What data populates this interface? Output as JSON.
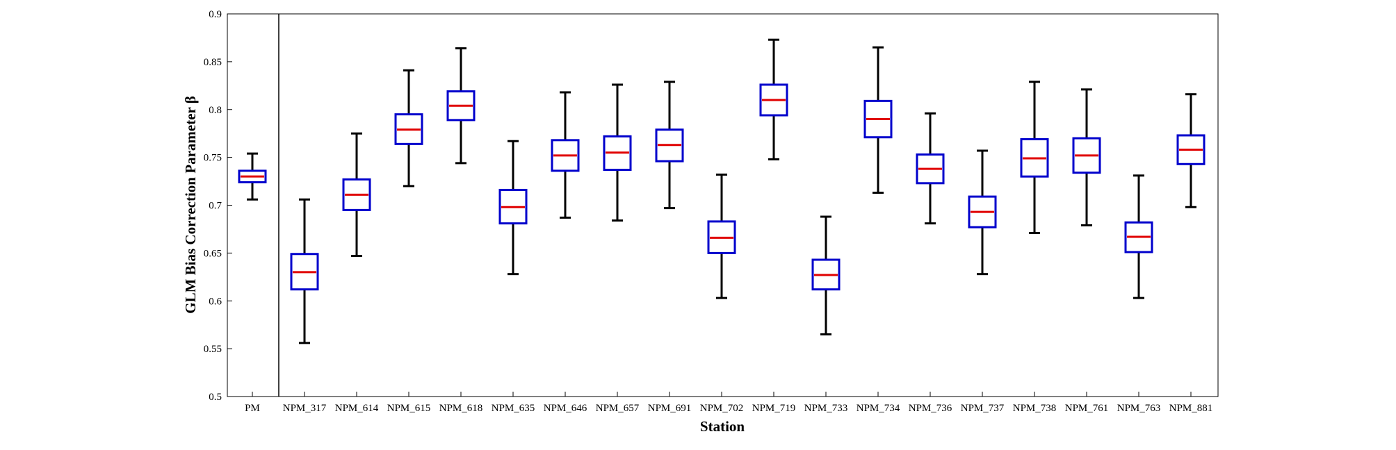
{
  "chart_data": {
    "type": "box",
    "xlabel": "Station",
    "ylabel": "GLM Bias Correction Parameter β",
    "ylim": [
      0.5,
      0.9
    ],
    "yticks": [
      0.5,
      0.55,
      0.6,
      0.65,
      0.7,
      0.75,
      0.8,
      0.85,
      0.9
    ],
    "grid": false,
    "colors": {
      "box": "#0000cc",
      "median": "#e00000",
      "whisker": "#000000"
    },
    "categories": [
      "PM",
      "NPM_317",
      "NPM_614",
      "NPM_615",
      "NPM_618",
      "NPM_635",
      "NPM_646",
      "NPM_657",
      "NPM_691",
      "NPM_702",
      "NPM_719",
      "NPM_733",
      "NPM_734",
      "NPM_736",
      "NPM_737",
      "NPM_738",
      "NPM_761",
      "NPM_763",
      "NPM_881"
    ],
    "boxes": [
      {
        "min": 0.706,
        "q1": 0.724,
        "median": 0.73,
        "q3": 0.736,
        "max": 0.754
      },
      {
        "min": 0.556,
        "q1": 0.612,
        "median": 0.63,
        "q3": 0.649,
        "max": 0.706
      },
      {
        "min": 0.647,
        "q1": 0.695,
        "median": 0.711,
        "q3": 0.727,
        "max": 0.775
      },
      {
        "min": 0.72,
        "q1": 0.764,
        "median": 0.779,
        "q3": 0.795,
        "max": 0.841
      },
      {
        "min": 0.744,
        "q1": 0.789,
        "median": 0.804,
        "q3": 0.819,
        "max": 0.864
      },
      {
        "min": 0.628,
        "q1": 0.681,
        "median": 0.698,
        "q3": 0.716,
        "max": 0.767
      },
      {
        "min": 0.687,
        "q1": 0.736,
        "median": 0.752,
        "q3": 0.768,
        "max": 0.818
      },
      {
        "min": 0.684,
        "q1": 0.737,
        "median": 0.755,
        "q3": 0.772,
        "max": 0.826
      },
      {
        "min": 0.697,
        "q1": 0.746,
        "median": 0.763,
        "q3": 0.779,
        "max": 0.829
      },
      {
        "min": 0.603,
        "q1": 0.65,
        "median": 0.666,
        "q3": 0.683,
        "max": 0.732
      },
      {
        "min": 0.748,
        "q1": 0.794,
        "median": 0.81,
        "q3": 0.826,
        "max": 0.873
      },
      {
        "min": 0.565,
        "q1": 0.612,
        "median": 0.627,
        "q3": 0.643,
        "max": 0.688
      },
      {
        "min": 0.713,
        "q1": 0.771,
        "median": 0.79,
        "q3": 0.809,
        "max": 0.865
      },
      {
        "min": 0.681,
        "q1": 0.723,
        "median": 0.738,
        "q3": 0.753,
        "max": 0.796
      },
      {
        "min": 0.628,
        "q1": 0.677,
        "median": 0.693,
        "q3": 0.709,
        "max": 0.757
      },
      {
        "min": 0.671,
        "q1": 0.73,
        "median": 0.749,
        "q3": 0.769,
        "max": 0.829
      },
      {
        "min": 0.679,
        "q1": 0.734,
        "median": 0.752,
        "q3": 0.77,
        "max": 0.821
      },
      {
        "min": 0.603,
        "q1": 0.651,
        "median": 0.667,
        "q3": 0.682,
        "max": 0.731
      },
      {
        "min": 0.698,
        "q1": 0.743,
        "median": 0.758,
        "q3": 0.773,
        "max": 0.816
      }
    ]
  }
}
